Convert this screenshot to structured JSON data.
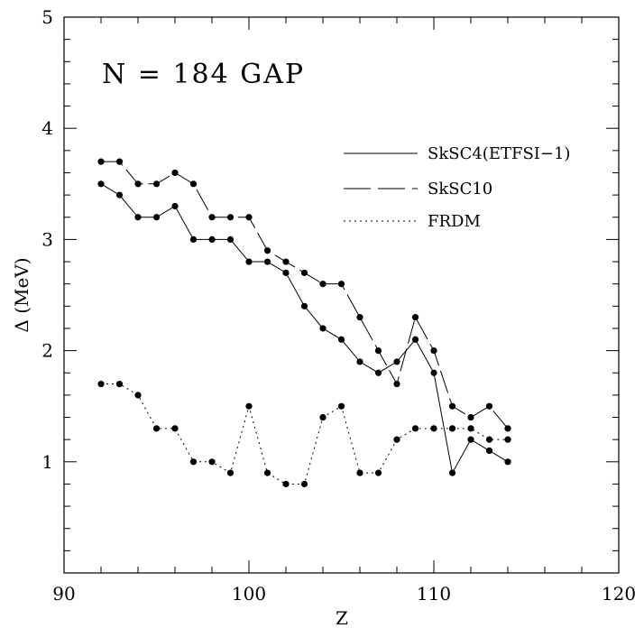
{
  "chart_data": {
    "type": "line",
    "title": "",
    "annotation": "N = 184 GAP",
    "xlabel": "Z",
    "ylabel": "Δ (MeV)",
    "xlim": [
      90,
      120
    ],
    "ylim": [
      0,
      5
    ],
    "x_ticks": [
      "90",
      "100",
      "110",
      "120"
    ],
    "y_ticks": [
      "1",
      "2",
      "3",
      "4",
      "5"
    ],
    "grid": false,
    "legend_position": "top-right",
    "series": [
      {
        "name": "SkSC4(ETFSI−1)",
        "style": "solid",
        "x": [
          92,
          93,
          94,
          95,
          96,
          97,
          98,
          99,
          100,
          101,
          102,
          103,
          104,
          105,
          106,
          107,
          108,
          109,
          110,
          111,
          112,
          113,
          114
        ],
        "y": [
          3.5,
          3.4,
          3.2,
          3.2,
          3.3,
          3.0,
          3.0,
          3.0,
          2.8,
          2.8,
          2.7,
          2.4,
          2.2,
          2.1,
          1.9,
          1.8,
          1.9,
          2.1,
          1.8,
          0.9,
          1.2,
          1.1,
          1.0
        ]
      },
      {
        "name": "SkSC10",
        "style": "dashed",
        "x": [
          92,
          93,
          94,
          95,
          96,
          97,
          98,
          99,
          100,
          101,
          102,
          103,
          104,
          105,
          106,
          107,
          108,
          109,
          110,
          111,
          112,
          113,
          114
        ],
        "y": [
          3.7,
          3.7,
          3.5,
          3.5,
          3.6,
          3.5,
          3.2,
          3.2,
          3.2,
          2.9,
          2.8,
          2.7,
          2.6,
          2.6,
          2.3,
          2.0,
          1.7,
          2.3,
          2.0,
          1.5,
          1.4,
          1.5,
          1.3
        ]
      },
      {
        "name": "FRDM",
        "style": "dotted",
        "x": [
          92,
          93,
          94,
          95,
          96,
          97,
          98,
          99,
          100,
          101,
          102,
          103,
          104,
          105,
          106,
          107,
          108,
          109,
          110,
          111,
          112,
          113,
          114
        ],
        "y": [
          1.7,
          1.7,
          1.6,
          1.3,
          1.3,
          1.0,
          1.0,
          0.9,
          1.5,
          0.9,
          0.8,
          0.8,
          1.4,
          1.5,
          0.9,
          0.9,
          1.2,
          1.3,
          1.3,
          1.3,
          1.3,
          1.2,
          1.2
        ]
      }
    ]
  }
}
